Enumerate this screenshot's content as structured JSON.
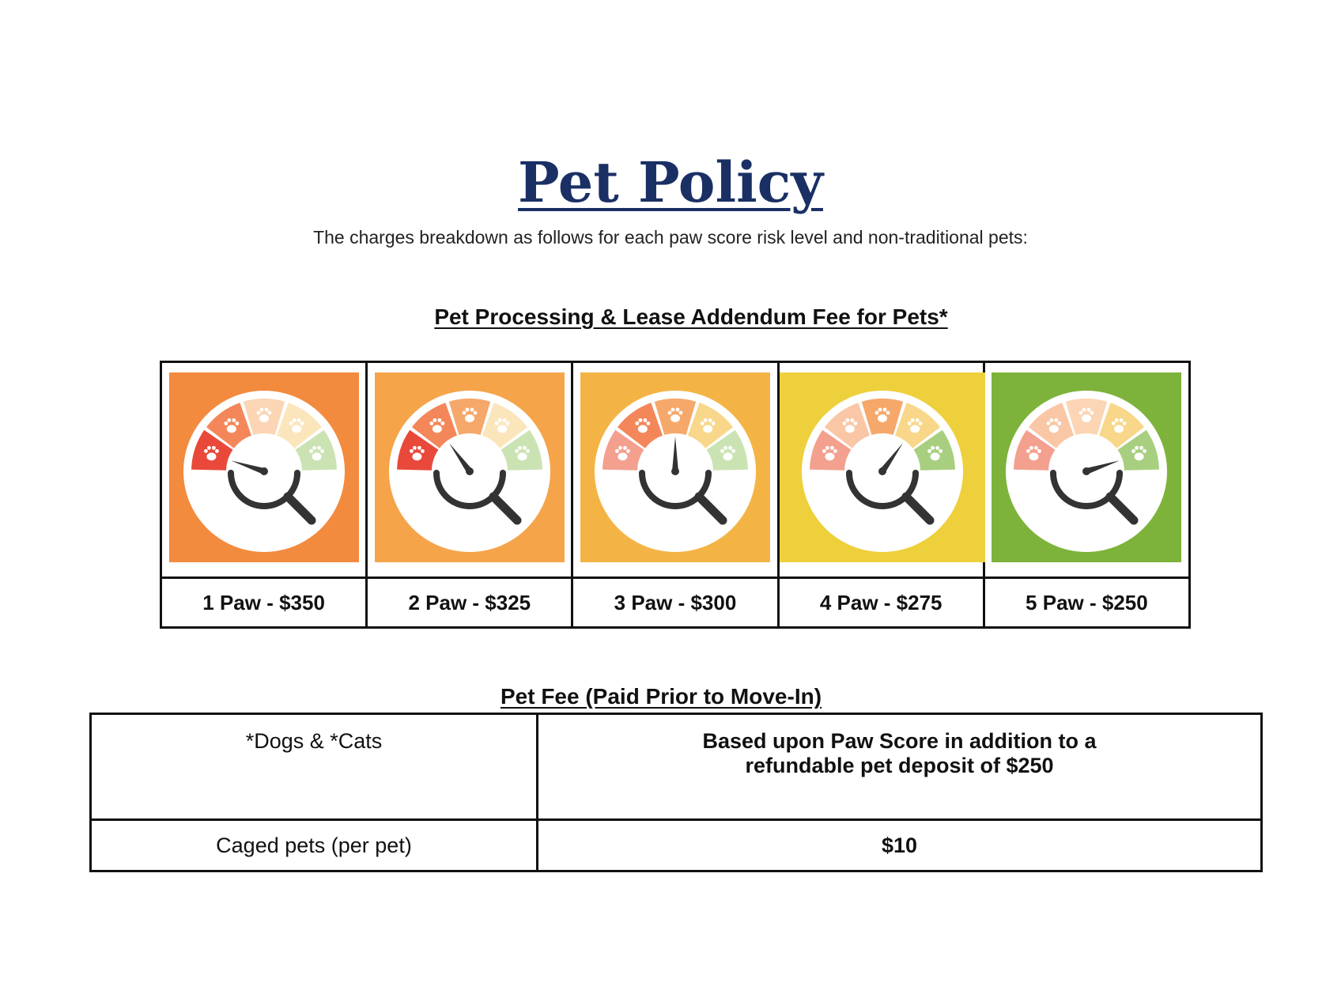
{
  "title": "Pet Policy",
  "subtitle": "The charges breakdown as follows for each paw score risk level and non-traditional pets:",
  "processing_section": {
    "heading": "Pet Processing & Lease Addendum Fee for Pets*",
    "tiers": [
      {
        "label": "1 Paw - $350",
        "score": 1,
        "background": "#f38b3e"
      },
      {
        "label": "2 Paw - $325",
        "score": 2,
        "background": "#f5a44a"
      },
      {
        "label": "3 Paw - $300",
        "score": 3,
        "background": "#f4b445"
      },
      {
        "label": "4 Paw - $275",
        "score": 4,
        "background": "#eed03c"
      },
      {
        "label": "5 Paw - $250",
        "score": 5,
        "background": "#7db33a"
      }
    ],
    "segment_colors": [
      "#e8493a",
      "#f4875a",
      "#f6a86a",
      "#f8d78a",
      "#a8cf7f"
    ],
    "segment_colors_faded": [
      "#f3a08f",
      "#f9c7a6",
      "#fbd5b4",
      "#fbe6bc",
      "#cbe3b3"
    ]
  },
  "fee_section": {
    "heading": "Pet Fee  (Paid Prior to Move-In)",
    "rows": [
      {
        "item": "*Dogs & *Cats",
        "value_line1": "Based upon Paw Score in addition to a",
        "value_line2": "refundable pet deposit of $250"
      },
      {
        "item": "Caged pets (per pet)",
        "value": "$10"
      }
    ]
  }
}
